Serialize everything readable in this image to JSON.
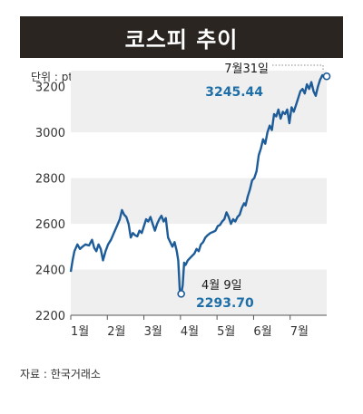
{
  "title": "코스피 추이",
  "unit": "단위 : pt",
  "source": "자료 : 한국거래소",
  "colors": {
    "line": "#1e5c99",
    "band": "#efefef",
    "accent": "#1e6fa8",
    "title_bg": "#2b2522"
  },
  "chart_data": {
    "type": "line",
    "title": "코스피 추이",
    "ylabel": "단위 : pt",
    "ylim": [
      2200,
      3270
    ],
    "yticks": [
      2200,
      2400,
      2600,
      2800,
      3000,
      3200
    ],
    "ytick_labels": [
      "2200",
      "2400",
      "2600",
      "2800",
      "3000",
      "3200"
    ],
    "categories": [
      "1월",
      "2월",
      "3월",
      "4월",
      "5월",
      "6월",
      "7월"
    ],
    "x_month_start": [
      1,
      2,
      3,
      4,
      5,
      6,
      7
    ],
    "x_end": 8.0,
    "series": [
      {
        "values": [
          [
            1.0,
            2390
          ],
          [
            1.05,
            2440
          ],
          [
            1.1,
            2480
          ],
          [
            1.18,
            2510
          ],
          [
            1.25,
            2490
          ],
          [
            1.32,
            2500
          ],
          [
            1.4,
            2510
          ],
          [
            1.5,
            2505
          ],
          [
            1.58,
            2530
          ],
          [
            1.64,
            2495
          ],
          [
            1.7,
            2480
          ],
          [
            1.76,
            2510
          ],
          [
            1.82,
            2490
          ],
          [
            1.88,
            2440
          ],
          [
            1.95,
            2480
          ],
          [
            2.02,
            2510
          ],
          [
            2.1,
            2530
          ],
          [
            2.18,
            2560
          ],
          [
            2.26,
            2590
          ],
          [
            2.34,
            2620
          ],
          [
            2.4,
            2660
          ],
          [
            2.46,
            2640
          ],
          [
            2.52,
            2630
          ],
          [
            2.58,
            2600
          ],
          [
            2.64,
            2540
          ],
          [
            2.7,
            2560
          ],
          [
            2.76,
            2550
          ],
          [
            2.82,
            2545
          ],
          [
            2.88,
            2570
          ],
          [
            2.94,
            2560
          ],
          [
            3.0,
            2590
          ],
          [
            3.06,
            2620
          ],
          [
            3.12,
            2610
          ],
          [
            3.18,
            2630
          ],
          [
            3.24,
            2600
          ],
          [
            3.3,
            2570
          ],
          [
            3.36,
            2600
          ],
          [
            3.42,
            2620
          ],
          [
            3.48,
            2635
          ],
          [
            3.54,
            2610
          ],
          [
            3.6,
            2625
          ],
          [
            3.66,
            2540
          ],
          [
            3.72,
            2520
          ],
          [
            3.78,
            2500
          ],
          [
            3.84,
            2520
          ],
          [
            3.9,
            2480
          ],
          [
            3.94,
            2440
          ],
          [
            3.98,
            2310
          ],
          [
            4.02,
            2293.7
          ],
          [
            4.06,
            2330
          ],
          [
            4.1,
            2430
          ],
          [
            4.14,
            2420
          ],
          [
            4.2,
            2440
          ],
          [
            4.26,
            2450
          ],
          [
            4.32,
            2460
          ],
          [
            4.38,
            2470
          ],
          [
            4.44,
            2490
          ],
          [
            4.5,
            2480
          ],
          [
            4.56,
            2510
          ],
          [
            4.62,
            2520
          ],
          [
            4.68,
            2540
          ],
          [
            4.74,
            2550
          ],
          [
            4.82,
            2560
          ],
          [
            4.9,
            2565
          ],
          [
            4.96,
            2570
          ],
          [
            5.02,
            2590
          ],
          [
            5.08,
            2595
          ],
          [
            5.14,
            2610
          ],
          [
            5.2,
            2620
          ],
          [
            5.26,
            2650
          ],
          [
            5.32,
            2630
          ],
          [
            5.38,
            2600
          ],
          [
            5.44,
            2620
          ],
          [
            5.5,
            2610
          ],
          [
            5.56,
            2630
          ],
          [
            5.62,
            2640
          ],
          [
            5.68,
            2670
          ],
          [
            5.74,
            2690
          ],
          [
            5.78,
            2680
          ],
          [
            5.84,
            2720
          ],
          [
            5.9,
            2750
          ],
          [
            5.96,
            2790
          ],
          [
            6.02,
            2800
          ],
          [
            6.08,
            2830
          ],
          [
            6.14,
            2900
          ],
          [
            6.2,
            2930
          ],
          [
            6.26,
            2970
          ],
          [
            6.32,
            2950
          ],
          [
            6.38,
            3000
          ],
          [
            6.44,
            3030
          ],
          [
            6.5,
            3010
          ],
          [
            6.56,
            3080
          ],
          [
            6.62,
            3070
          ],
          [
            6.68,
            3100
          ],
          [
            6.74,
            3060
          ],
          [
            6.8,
            3090
          ],
          [
            6.86,
            3080
          ],
          [
            6.92,
            3100
          ],
          [
            6.98,
            3040
          ],
          [
            7.04,
            3110
          ],
          [
            7.1,
            3090
          ],
          [
            7.16,
            3120
          ],
          [
            7.22,
            3150
          ],
          [
            7.28,
            3180
          ],
          [
            7.34,
            3190
          ],
          [
            7.4,
            3170
          ],
          [
            7.46,
            3210
          ],
          [
            7.52,
            3190
          ],
          [
            7.58,
            3220
          ],
          [
            7.64,
            3180
          ],
          [
            7.7,
            3160
          ],
          [
            7.76,
            3200
          ],
          [
            7.82,
            3230
          ],
          [
            7.88,
            3250
          ],
          [
            7.94,
            3240
          ],
          [
            8.0,
            3245.44
          ]
        ]
      }
    ],
    "annotations": [
      {
        "date": "4월 9일",
        "value": "2293.70",
        "x": 4.02,
        "y": 2293.7
      },
      {
        "date": "7월31일",
        "value": "3245.44",
        "x": 8.0,
        "y": 3245.44
      }
    ]
  }
}
